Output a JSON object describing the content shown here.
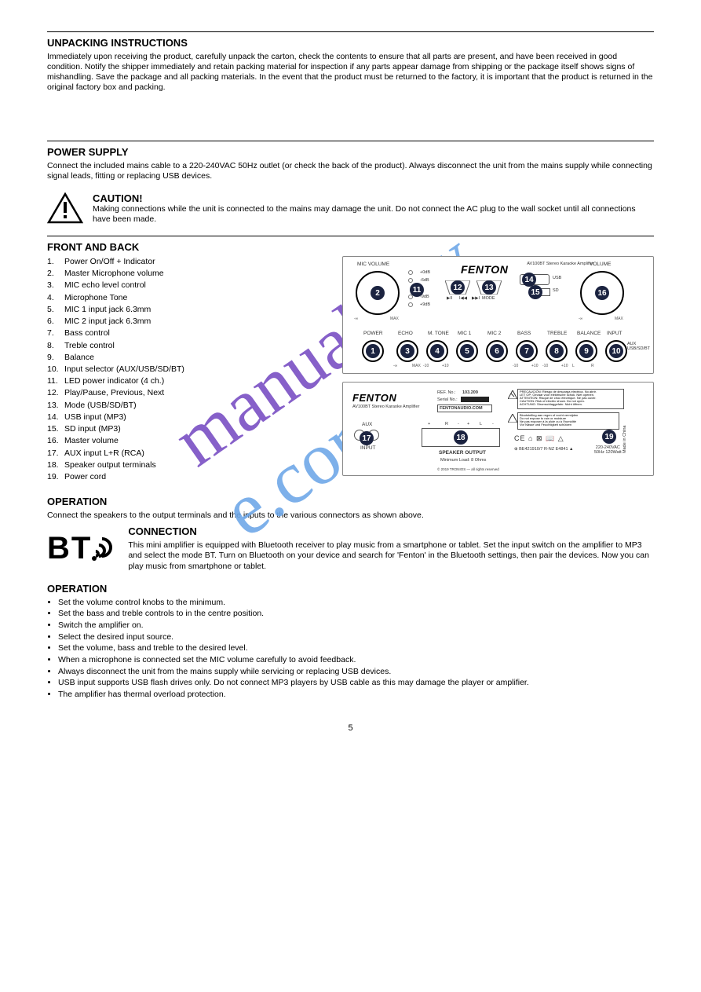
{
  "watermark": {
    "text": "manualshive.com",
    "colors": [
      "#7a4fc4",
      "#7a4fc4",
      "#7a4fc4",
      "#7a4fc4",
      "#7a4fc4",
      "#7a4fc4",
      "#7a4fc4",
      "#6fa8e8",
      "#6fa8e8",
      "#6fa8e8",
      "#6fa8e8",
      "#6fa8e8",
      "#6fa8e8",
      "#6fa8e8",
      "#6fa8e8",
      "#6fa8e8"
    ]
  },
  "unpacking": {
    "title": "UNPACKING INSTRUCTIONS",
    "body": "Immediately upon receiving the product, carefully unpack the carton, check the contents to ensure that all parts are present, and have been received in good condition. Notify the shipper immediately and retain packing material for inspection if any parts appear damage from shipping or the package itself shows signs of mishandling. Save the package and all packing materials. In the event that the product must be returned to the factory, it is important that the product is returned in the original factory box and packing."
  },
  "power": {
    "title": "POWER SUPPLY",
    "body": "Connect the included mains cable to a 220-240VAC 50Hz outlet (or check the back of the product). Always disconnect the unit from the mains supply while connecting signal leads, fitting or replacing USB devices."
  },
  "caution": {
    "label": "CAUTION!",
    "body": "Making connections while the unit is connected to the mains may damage the unit. Do not connect the AC plug to the wall socket until all connections have been made."
  },
  "front_title": "FRONT AND BACK",
  "items": [
    {
      "n": "1.",
      "t": "Power On/Off + Indicator"
    },
    {
      "n": "2.",
      "t": "Master Microphone volume"
    },
    {
      "n": "3.",
      "t": "MIC echo level control"
    },
    {
      "n": "4.",
      "t": "Microphone Tone"
    },
    {
      "n": "5.",
      "t": "MIC 1 input jack 6.3mm"
    },
    {
      "n": "6.",
      "t": "MIC 2 input jack 6.3mm"
    },
    {
      "n": "7.",
      "t": "Bass control"
    },
    {
      "n": "8.",
      "t": "Treble control"
    },
    {
      "n": "9.",
      "t": "Balance"
    },
    {
      "n": "10.",
      "t": "Input selector (AUX/USB/SD/BT)"
    },
    {
      "n": "11.",
      "t": "LED power indicator (4 ch.)"
    },
    {
      "n": "12.",
      "t": "Play/Pause, Previous, Next"
    },
    {
      "n": "13.",
      "t": "Mode (USB/SD/BT)"
    },
    {
      "n": "14.",
      "t": "USB input (MP3)"
    },
    {
      "n": "15.",
      "t": "SD input (MP3)"
    },
    {
      "n": "16.",
      "t": "Master volume"
    },
    {
      "n": "17.",
      "t": "AUX input L+R (RCA)"
    },
    {
      "n": "18.",
      "t": "Speaker output terminals"
    },
    {
      "n": "19.",
      "t": "Power cord"
    }
  ],
  "panel_labels": {
    "mic_volume": "MIC VOLUME",
    "volume": "VOLUME",
    "power": "POWER",
    "echo": "ECHO",
    "mtone": "M. TONE",
    "mic1": "MIC 1",
    "mic2": "MIC 2",
    "bass": "BASS",
    "treble": "TREBLE",
    "balance": "BALANCE",
    "input": "INPUT",
    "mode": "MODE",
    "usb": "USB",
    "sd": "SD",
    "brand": "FENTON",
    "model": "AV100BT Stereo Karaoke Amplifier",
    "play": "▶II",
    "prev": "I◀◀",
    "next": "▶▶I",
    "min": "-∞",
    "max": "MAX",
    "minus10": "-10",
    "plus10": "+10",
    "l": "L",
    "r": "R",
    "aux_mp3": "AUX\nUSB/SD/BT",
    "oodb": "+0dB",
    "m6": "-6dB",
    "m9": "-9dB",
    "o9": "+9dB"
  },
  "back_labels": {
    "brand": "FENTON",
    "model": "AV100BT Stereo Karaoke Amplifier",
    "ref": "REF. No.:",
    "refno": "103.209",
    "serial": "Serial No.:",
    "site": "FENTONAUDIO.COM",
    "aux": "AUX",
    "input": "INPUT",
    "r": "R",
    "l": "L",
    "plus": "+",
    "minus": "-",
    "spk": "SPEAKER OUTPUT",
    "imp": "Minimum Load: 8 Ohms",
    "volt": "220-240VAC\n50Hz 120Watt",
    "made": "Made in China",
    "comp": "CE ⌂ ⊠ 📖 △",
    "reg": "⊕ BE421910/7   R-NZ  E4841  ▲",
    "precaution": "PRECAUCIÓN: Riesgo de descarga eléctrica. No abrir.\nLET OP: Gevaar voor elektrische schok. Niet openen.\nATTENTION: Risque de choc électrique. Ne pas ouvrir.\nCAUTION: Risk of electric shock. Do not open.\nACHTUNG: Stromschlaggefahr. Nicht öffnen.",
    "warn2": "Blootstelling aan regen of vocht vermijden\nDo not expose to rain or moisture\nNe pas exposer à la pluie ou à l'humidité\nVor Nässe und Feuchtigkeit schützen",
    "copyright": "© 2019 TRONIOS — all rights reserved"
  },
  "op_title": "OPERATION",
  "op_body1": "Connect the speakers to the output terminals and the inputs to the various connectors as shown above.",
  "conn_title": "CONNECTION",
  "conn_body": "This mini amplifier is equipped with Bluetooth receiver to play music from a smartphone or tablet. Set the input switch on the amplifier to MP3 and select the mode BT. Turn on Bluetooth on your device and search for 'Fenton' in the Bluetooth settings, then pair the devices. Now you can play music from smartphone or tablet.",
  "op2_title": "OPERATION",
  "op_bullets": [
    "Set the volume control knobs to the minimum.",
    "Set the bass and treble controls to in the centre position.",
    "Switch the amplifier on.",
    "Select the desired input source.",
    "Set the volume, bass and treble to the desired level.",
    "When a microphone is connected set the MIC volume carefully to avoid feedback.",
    "Always disconnect the unit from the mains supply while servicing or replacing USB devices.",
    "USB input supports USB flash drives only. Do not connect MP3 players by USB cable as this may damage the player or amplifier.",
    "The amplifier has thermal overload protection."
  ],
  "page_number": "5"
}
